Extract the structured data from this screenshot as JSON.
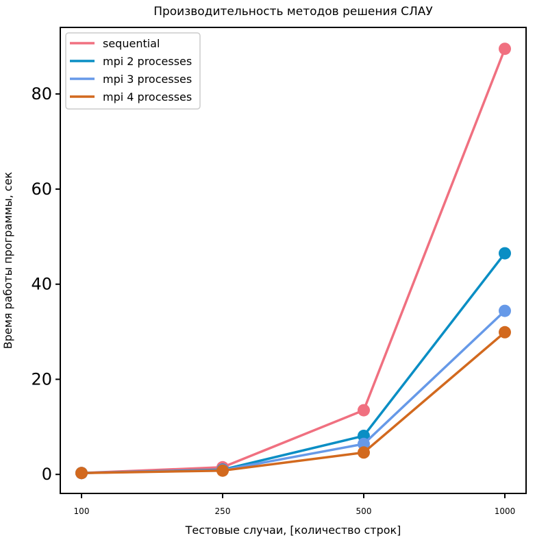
{
  "chart_data": {
    "type": "line",
    "title": "Производительность методов решения СЛАУ",
    "xlabel": "Тестовые случаи, [количество строк]",
    "ylabel": "Время работы программы, сек",
    "categories": [
      "100",
      "250",
      "500",
      "1000"
    ],
    "ylim": [
      -4,
      94
    ],
    "yticks": [
      0,
      20,
      40,
      60,
      80
    ],
    "grid": false,
    "legend_position": "top-left",
    "series": [
      {
        "name": "sequential",
        "color": "#f07080",
        "values": [
          0.3,
          1.5,
          13.5,
          89.5
        ]
      },
      {
        "name": "mpi 2 processes",
        "color": "#0a8ec4",
        "values": [
          0.3,
          1.0,
          8.1,
          46.5
        ]
      },
      {
        "name": "mpi 3 processes",
        "color": "#6699e8",
        "values": [
          0.3,
          0.9,
          6.4,
          34.4
        ]
      },
      {
        "name": "mpi 4 processes",
        "color": "#d2691e",
        "values": [
          0.3,
          0.8,
          4.6,
          29.9
        ]
      }
    ]
  }
}
